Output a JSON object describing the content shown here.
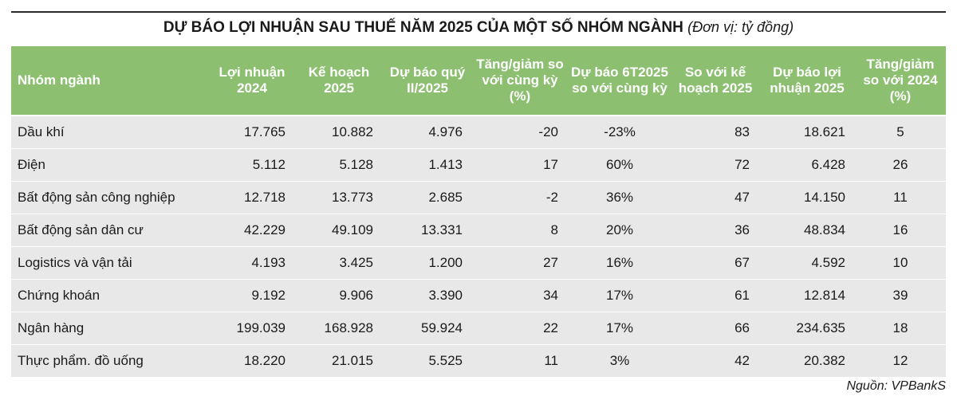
{
  "title": {
    "main": "DỰ BÁO LỢI NHUẬN SAU THUẾ NĂM 2025 CỦA MỘT SỐ NHÓM NGÀNH",
    "unit": "(Đơn vị: tỷ đồng)"
  },
  "table": {
    "headers": {
      "c0": "Nhóm ngành",
      "c1": "Lợi nhuận 2024",
      "c2": "Kế hoạch 2025",
      "c3": "Dự báo quý II/2025",
      "c4": "Tăng/giảm so với cùng kỳ (%)",
      "c5": "Dự báo 6T2025 so với cùng kỳ",
      "c6": "So với kế hoạch 2025",
      "c7": "Dự báo lợi nhuận 2025",
      "c8": "Tăng/giảm so với 2024 (%)"
    },
    "rows": [
      {
        "c0": "Dầu khí",
        "c1": "17.765",
        "c2": "10.882",
        "c3": "4.976",
        "c4": "-20",
        "c5": "-23%",
        "c6": "83",
        "c7": "18.621",
        "c8": "5"
      },
      {
        "c0": "Điện",
        "c1": "5.112",
        "c2": "5.128",
        "c3": "1.413",
        "c4": "17",
        "c5": "60%",
        "c6": "72",
        "c7": "6.428",
        "c8": "26"
      },
      {
        "c0": "Bất động sản công nghiệp",
        "c1": "12.718",
        "c2": "13.773",
        "c3": "2.685",
        "c4": "-2",
        "c5": "36%",
        "c6": "47",
        "c7": "14.150",
        "c8": "11"
      },
      {
        "c0": "Bất động sản dân cư",
        "c1": "42.229",
        "c2": "49.109",
        "c3": "13.331",
        "c4": "8",
        "c5": "20%",
        "c6": "36",
        "c7": "48.834",
        "c8": "16"
      },
      {
        "c0": "Logistics và vận tải",
        "c1": "4.193",
        "c2": "3.425",
        "c3": "1.200",
        "c4": "27",
        "c5": "16%",
        "c6": "67",
        "c7": "4.592",
        "c8": "10"
      },
      {
        "c0": "Chứng khoán",
        "c1": "9.192",
        "c2": "9.906",
        "c3": "3.390",
        "c4": "34",
        "c5": "17%",
        "c6": "61",
        "c7": "12.814",
        "c8": "39"
      },
      {
        "c0": "Ngân hàng",
        "c1": "199.039",
        "c2": "168.928",
        "c3": "59.924",
        "c4": "22",
        "c5": "17%",
        "c6": "66",
        "c7": "234.635",
        "c8": "18"
      },
      {
        "c0": "Thực phẩm. đồ uống",
        "c1": "18.220",
        "c2": "21.015",
        "c3": "5.525",
        "c4": "11",
        "c5": "3%",
        "c6": "42",
        "c7": "20.382",
        "c8": "12"
      }
    ]
  },
  "source": "Nguồn: VPBankS",
  "colors": {
    "header_bg": "#8cbf70",
    "row_bg": "#e8e8e8"
  }
}
